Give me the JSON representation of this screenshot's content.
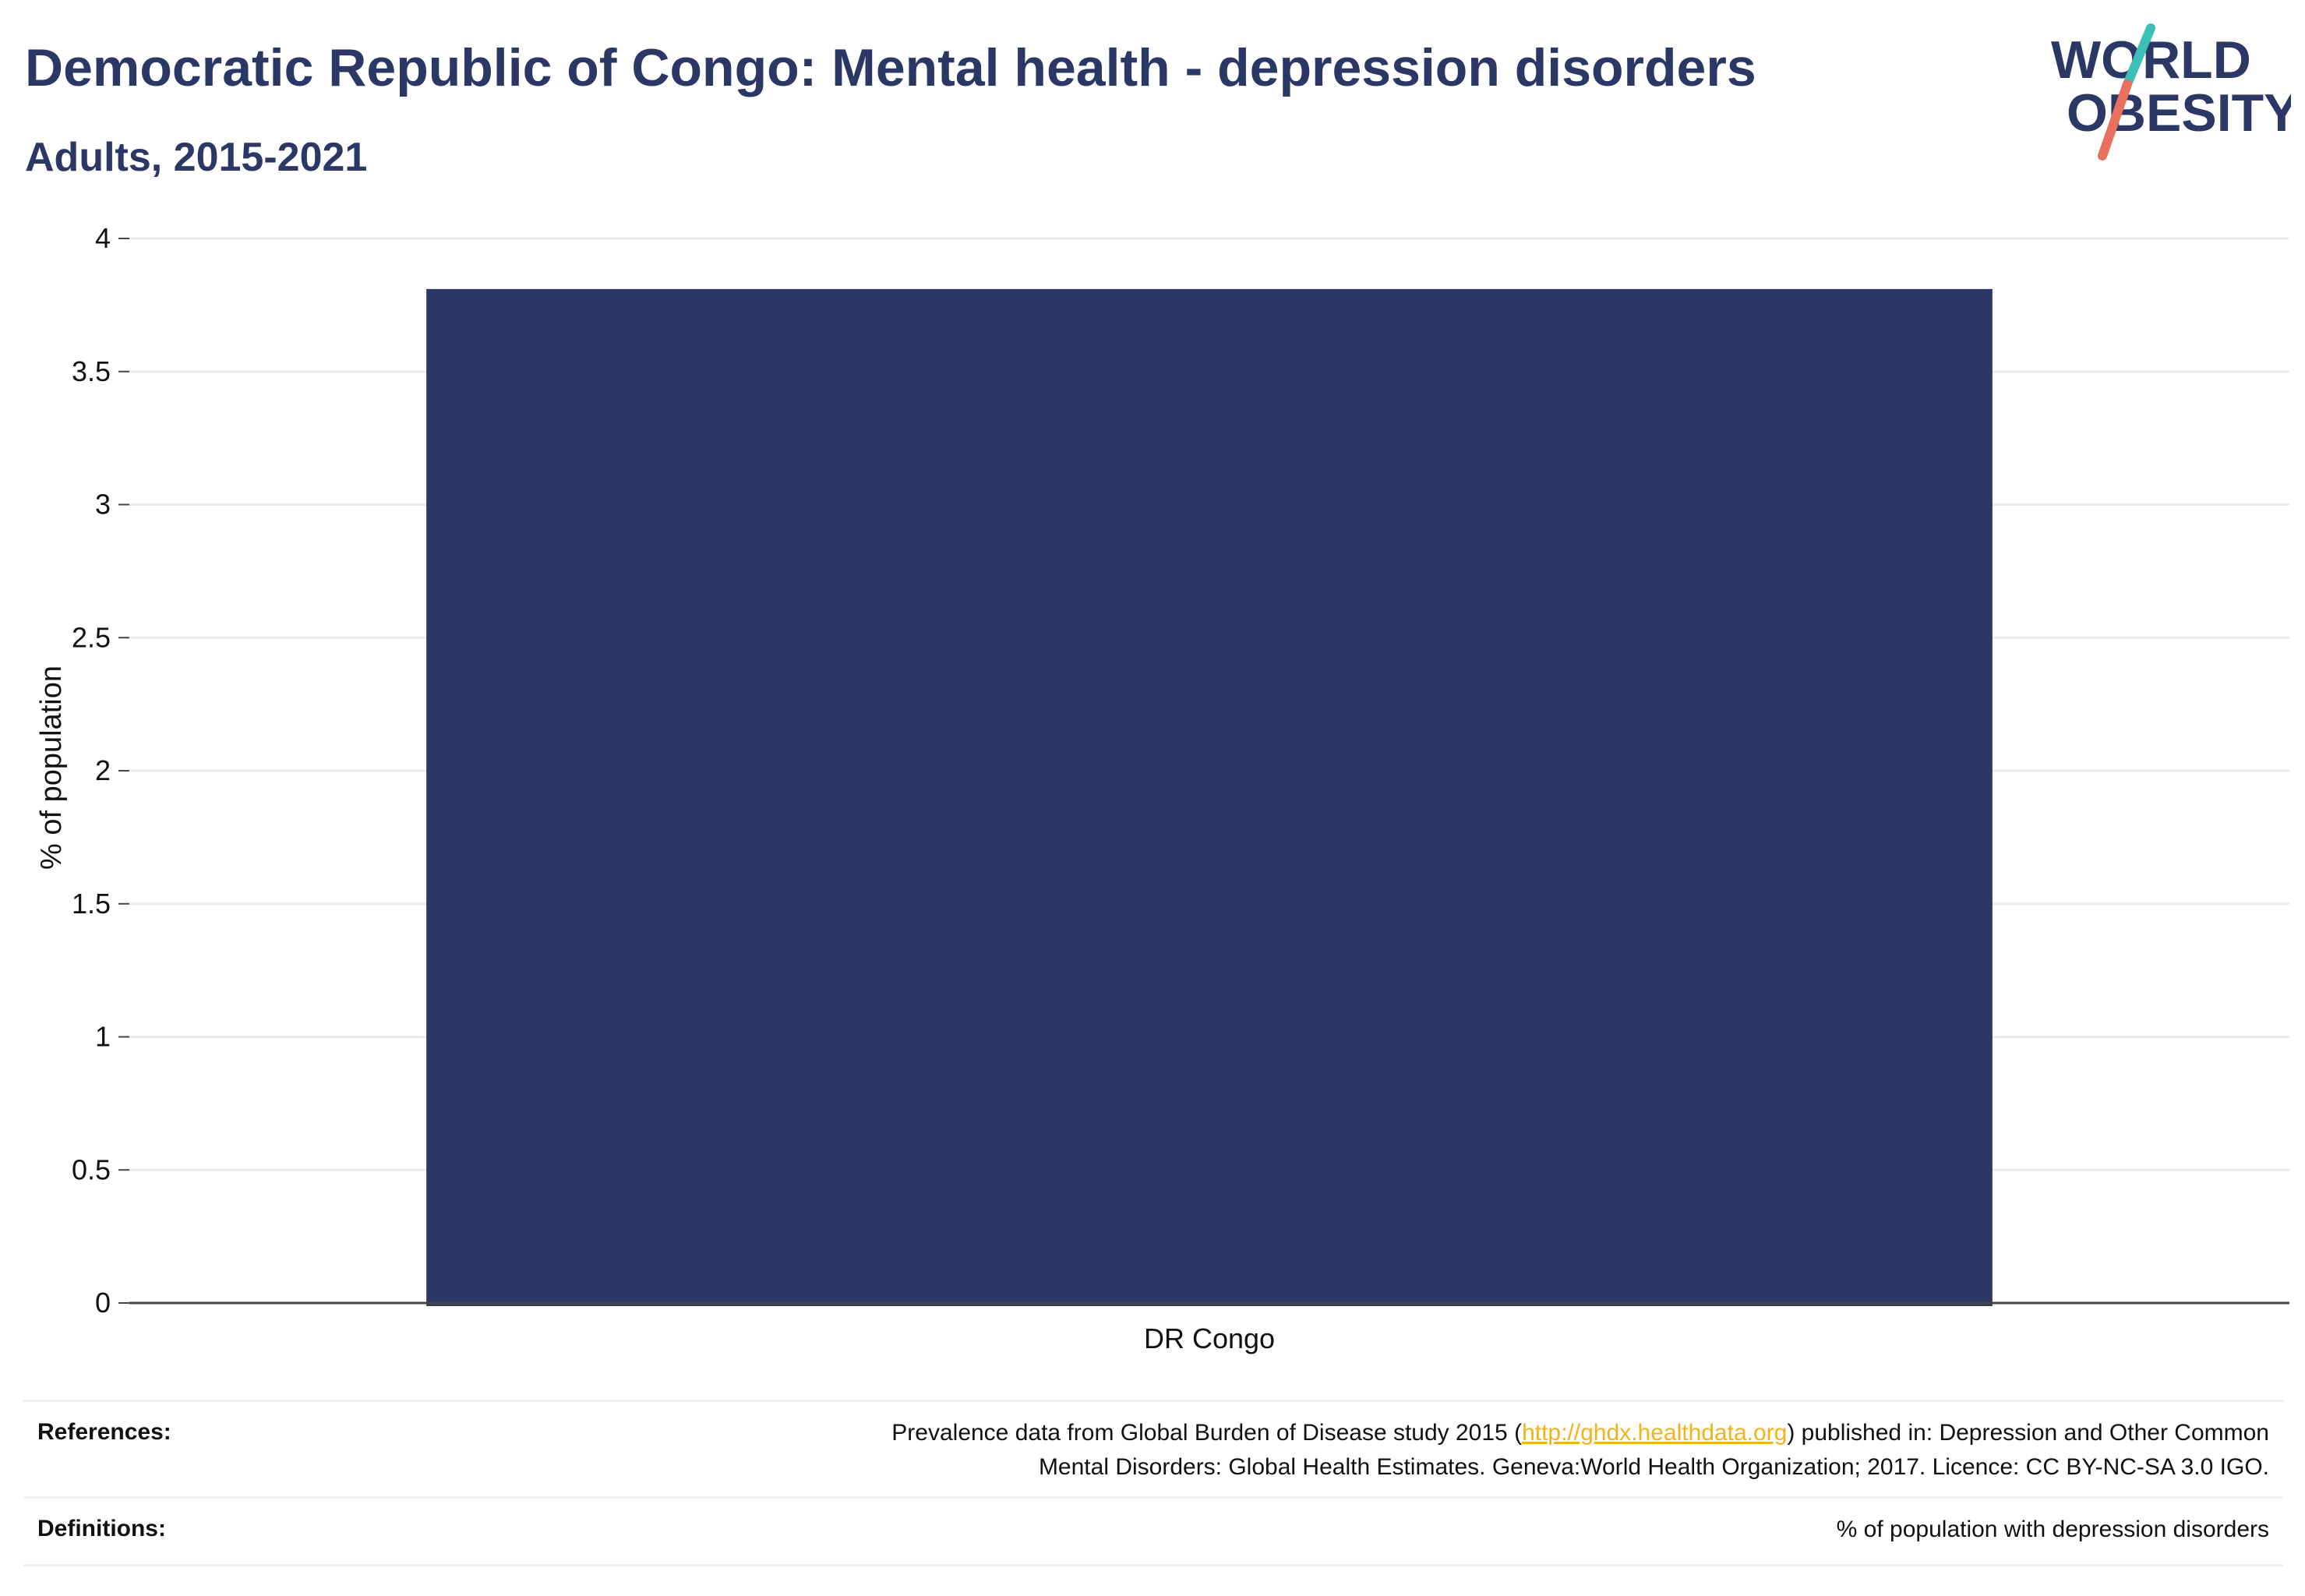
{
  "header": {
    "title": "Democratic Republic of Congo: Mental health - depression disorders",
    "subtitle": "Adults, 2015-2021"
  },
  "logo": {
    "line1": "WORLD",
    "line2": "OBESITY",
    "colors": {
      "text": "#2b3765",
      "slash_top": "#3bbfb9",
      "slash_bottom": "#e8705c"
    }
  },
  "chart_data": {
    "type": "bar",
    "categories": [
      "DR Congo"
    ],
    "values": [
      3.81
    ],
    "ylabel": "% of population",
    "xlabel": "",
    "ylim": [
      0,
      4
    ],
    "yticks": [
      0,
      0.5,
      1,
      1.5,
      2,
      2.5,
      3,
      3.5,
      4
    ],
    "ytick_labels": [
      "0",
      "0.5",
      "1",
      "1.5",
      "2",
      "2.5",
      "3",
      "3.5",
      "4"
    ],
    "grid": true,
    "bar_color": "#2b3765"
  },
  "footer": {
    "references_label": "References:",
    "references_line1_pre": "Prevalence data from Global Burden of Disease study 2015 (",
    "references_link": "http://ghdx.healthdata.org",
    "references_line1_post": ") published in: Depression and Other Common",
    "references_line2": "Mental Disorders: Global Health Estimates. Geneva:World Health Organization; 2017. Licence: CC BY-NC-SA 3.0 IGO.",
    "definitions_label": "Definitions:",
    "definitions_text": "% of population with depression disorders"
  }
}
